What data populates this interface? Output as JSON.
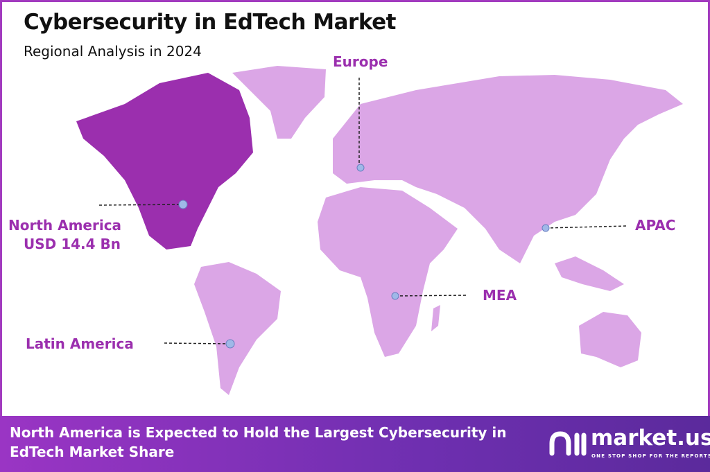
{
  "header": {
    "title": "Cybersecurity in EdTech Market",
    "subtitle": "Regional Analysis in 2024"
  },
  "regions": [
    {
      "name": "North America",
      "value": "USD 14.4 Bn",
      "highlighted": true
    },
    {
      "name": "Europe"
    },
    {
      "name": "APAC"
    },
    {
      "name": "MEA"
    },
    {
      "name": "Latin America"
    }
  ],
  "colors": {
    "highlight": "#9b2fae",
    "region": "#dba6e6",
    "label": "#9b2fae",
    "marker": "#9fb8e8",
    "banner": "#8a33c0"
  },
  "footer": {
    "text": "North America is Expected to Hold the Largest Cybersecurity in EdTech Market Share",
    "logo_name": "market.us",
    "logo_tagline": "ONE STOP SHOP FOR THE REPORTS"
  }
}
